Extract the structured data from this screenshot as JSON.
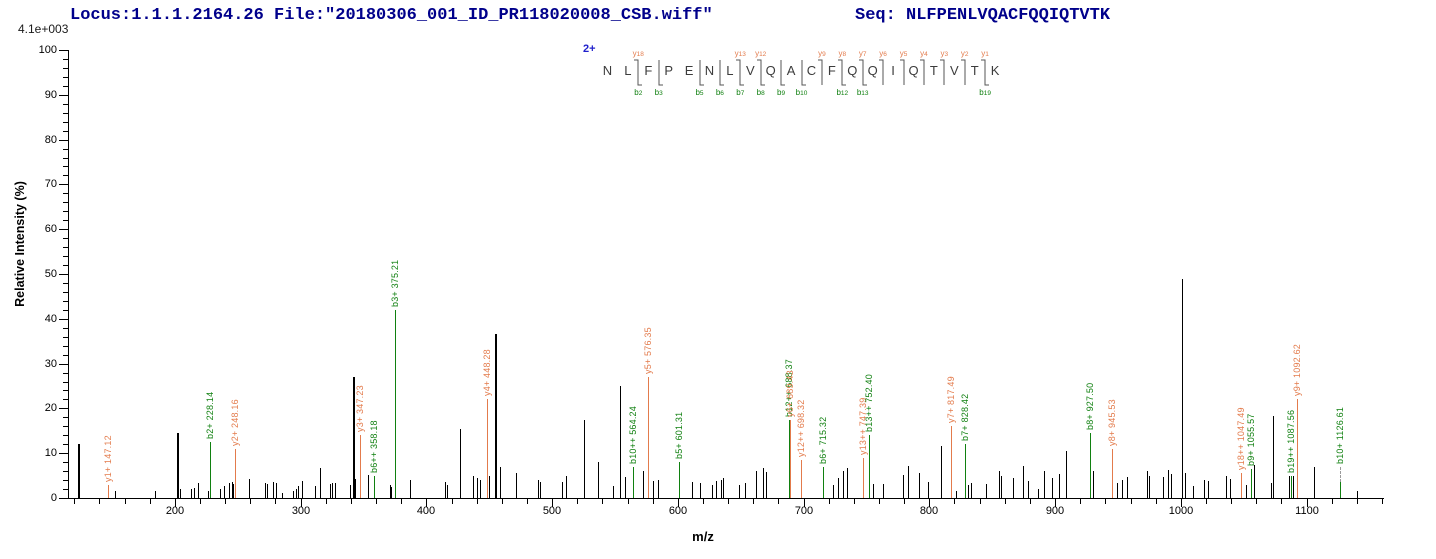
{
  "header": {
    "locus_file": "Locus:1.1.1.2164.26 File:\"20180306_001_ID_PR118020008_CSB.wiff\"",
    "seq_line": "Seq: NLFPENLVQACFQQIQTVTK",
    "max_intensity": "4.1e+003"
  },
  "precursor_charge": "2+",
  "peptide": {
    "residues": [
      "N",
      "L",
      "F",
      "P",
      "E",
      "N",
      "L",
      "V",
      "Q",
      "A",
      "C",
      "F",
      "Q",
      "Q",
      "I",
      "Q",
      "T",
      "V",
      "T",
      "K"
    ],
    "fragments": [
      {
        "after": 2,
        "y": "y18",
        "b": "b2"
      },
      {
        "after": 3,
        "b": "b3"
      },
      {
        "after": 5,
        "b": "b5"
      },
      {
        "after": 6,
        "b": "b6"
      },
      {
        "after": 7,
        "y": "y13",
        "b": "b7"
      },
      {
        "after": 8,
        "y": "y12",
        "b": "b8"
      },
      {
        "after": 9,
        "b": "b9"
      },
      {
        "after": 10,
        "b": "b10"
      },
      {
        "after": 11,
        "y": "y9"
      },
      {
        "after": 12,
        "y": "y8",
        "b": "b12"
      },
      {
        "after": 13,
        "y": "y7",
        "b": "b13"
      },
      {
        "after": 14,
        "y": "y6"
      },
      {
        "after": 15,
        "y": "y5"
      },
      {
        "after": 16,
        "y": "y4"
      },
      {
        "after": 17,
        "y": "y3"
      },
      {
        "after": 18,
        "y": "y2"
      },
      {
        "after": 19,
        "y": "y1",
        "b": "b19"
      }
    ]
  },
  "colors": {
    "y_ion": "#E37B4C",
    "b_ion": "#108010",
    "peak": "#000000",
    "header_text": "#00008B",
    "charge_label": "#2020CC"
  },
  "chart_data": {
    "type": "stick-spectrum",
    "xlabel": "m/z",
    "ylabel": "Relative  Intensity (%)",
    "xlim": [
      115,
      1160
    ],
    "ylim": [
      0,
      100
    ],
    "x_major_ticks": [
      200,
      300,
      400,
      500,
      600,
      700,
      800,
      900,
      1000,
      1100
    ],
    "x_minor_step": 20,
    "y_major_step": 10,
    "y_minor_step": 2,
    "max_intensity_label": "4.1e+003",
    "labeled_peaks": [
      {
        "label": "y1+ 147.12",
        "mz": 147.12,
        "intensity": 3,
        "series": "y"
      },
      {
        "label": "b2+ 228.14",
        "mz": 228.14,
        "intensity": 12.5,
        "series": "b"
      },
      {
        "label": "y2+ 248.16",
        "mz": 248.16,
        "intensity": 11,
        "series": "y"
      },
      {
        "label": "y3+ 347.23",
        "mz": 347.23,
        "intensity": 14,
        "series": "y"
      },
      {
        "label": "b6++ 358.18",
        "mz": 358.18,
        "intensity": 5,
        "series": "b"
      },
      {
        "label": "b3+ 375.21",
        "mz": 375.21,
        "intensity": 42,
        "series": "b"
      },
      {
        "label": "y4+ 448.28",
        "mz": 448.28,
        "intensity": 22,
        "series": "y"
      },
      {
        "label": "b10++ 564.24",
        "mz": 564.24,
        "intensity": 7,
        "series": "b"
      },
      {
        "label": "y5+ 576.35",
        "mz": 576.35,
        "intensity": 27,
        "series": "y"
      },
      {
        "label": "b5+ 601.31",
        "mz": 601.31,
        "intensity": 8,
        "series": "b"
      },
      {
        "label": "b12++ 688.37",
        "mz": 688.37,
        "intensity": 17.5,
        "series": "b"
      },
      {
        "label": "y6+ 689.43",
        "mz": 689.43,
        "intensity": 17.5,
        "series": "y"
      },
      {
        "label": "y12++ 698.32",
        "mz": 698.32,
        "intensity": 8.5,
        "series": "y"
      },
      {
        "label": "b6+ 715.32",
        "mz": 715.32,
        "intensity": 7,
        "series": "b"
      },
      {
        "label": "y13++ 747.39",
        "mz": 747.39,
        "intensity": 9,
        "series": "y"
      },
      {
        "label": "b13++ 752.40",
        "mz": 752.4,
        "intensity": 14,
        "series": "b"
      },
      {
        "label": "y7+ 817.49",
        "mz": 817.49,
        "intensity": 16,
        "series": "y"
      },
      {
        "label": "b7+ 828.42",
        "mz": 828.42,
        "intensity": 12,
        "series": "b"
      },
      {
        "label": "b8+ 927.50",
        "mz": 927.5,
        "intensity": 14.5,
        "series": "b"
      },
      {
        "label": "y8+ 945.53",
        "mz": 945.53,
        "intensity": 11,
        "series": "y"
      },
      {
        "label": "y18++ 1047.49",
        "mz": 1047.49,
        "intensity": 5.5,
        "series": "y"
      },
      {
        "label": "b9+ 1055.57",
        "mz": 1055.57,
        "intensity": 6.5,
        "series": "b"
      },
      {
        "label": "b19++ 1087.56",
        "mz": 1087.56,
        "intensity": 5,
        "series": "b"
      },
      {
        "label": "y9+ 1092.62",
        "mz": 1092.62,
        "intensity": 22,
        "series": "y"
      },
      {
        "label": "b10+ 1126.61",
        "mz": 1126.61,
        "intensity": 3.5,
        "series": "b",
        "label_intensity": 7,
        "connector": "dashed"
      }
    ],
    "unlabeled_peaks": [
      [
        123,
        12,
        2
      ],
      [
        152,
        1.5
      ],
      [
        184,
        1.5
      ],
      [
        202,
        14.5,
        2
      ],
      [
        204,
        2
      ],
      [
        213,
        2
      ],
      [
        215.3,
        2.3
      ],
      [
        218.5,
        3.3
      ],
      [
        226,
        1.5
      ],
      [
        235.8,
        2
      ],
      [
        239.2,
        2.7
      ],
      [
        243.2,
        3.4
      ],
      [
        245.1,
        3.5
      ],
      [
        246.5,
        3.2
      ],
      [
        258.8,
        4.3
      ],
      [
        271.6,
        3.4
      ],
      [
        273.4,
        3.2
      ],
      [
        278.1,
        3.6
      ],
      [
        280.1,
        3.4
      ],
      [
        285.3,
        1.2
      ],
      [
        294.1,
        1.5
      ],
      [
        296,
        1.9
      ],
      [
        298.3,
        2.7
      ],
      [
        301.2,
        3.8
      ],
      [
        311.3,
        2.7
      ],
      [
        315.8,
        6.6
      ],
      [
        323.2,
        3.2
      ],
      [
        325.1,
        3.4
      ],
      [
        327.7,
        3.4
      ],
      [
        339.1,
        3
      ],
      [
        341.3,
        27,
        2
      ],
      [
        343.6,
        4.2
      ],
      [
        353.7,
        5.2
      ],
      [
        370.9,
        3
      ],
      [
        372.2,
        2.5
      ],
      [
        386.8,
        4
      ],
      [
        414.6,
        3.5
      ],
      [
        416.5,
        3
      ],
      [
        426.6,
        15.5
      ],
      [
        437,
        5
      ],
      [
        440,
        4.5
      ],
      [
        442.4,
        4
      ],
      [
        450,
        5
      ],
      [
        454.4,
        36.5,
        2
      ],
      [
        458.3,
        7
      ],
      [
        471.3,
        5.5
      ],
      [
        488.6,
        4
      ],
      [
        490.1,
        3.5
      ],
      [
        508.2,
        3.6
      ],
      [
        511.4,
        5
      ],
      [
        525.4,
        17.5
      ],
      [
        536.5,
        8
      ],
      [
        548.4,
        2.6
      ],
      [
        553.7,
        25
      ],
      [
        557.7,
        4.7
      ],
      [
        572.3,
        6
      ],
      [
        580.2,
        3.8
      ],
      [
        584.2,
        4
      ],
      [
        611.2,
        3.6
      ],
      [
        617.3,
        3.3
      ],
      [
        627.1,
        2.9
      ],
      [
        630,
        3.7
      ],
      [
        634.6,
        4
      ],
      [
        636,
        4.5
      ],
      [
        648.6,
        2.9
      ],
      [
        653.7,
        3.3
      ],
      [
        662.4,
        6
      ],
      [
        667.7,
        6.7
      ],
      [
        670.4,
        5.7
      ],
      [
        723.3,
        3
      ],
      [
        727.3,
        4.5
      ],
      [
        731.2,
        6.1
      ],
      [
        734.7,
        6.7
      ],
      [
        755.1,
        3.1
      ],
      [
        763.1,
        3.1
      ],
      [
        779,
        5.2
      ],
      [
        783,
        7.1
      ],
      [
        791.7,
        5.6
      ],
      [
        798.9,
        3.6
      ],
      [
        809.5,
        11.6
      ],
      [
        821,
        1.5
      ],
      [
        830.6,
        2.8
      ],
      [
        833.3,
        3.4
      ],
      [
        845.2,
        3.1
      ],
      [
        855.8,
        6
      ],
      [
        857.2,
        5
      ],
      [
        866.4,
        4.5
      ],
      [
        874.3,
        7.1
      ],
      [
        878.3,
        3.9
      ],
      [
        886.3,
        1.9
      ],
      [
        890.8,
        6
      ],
      [
        897.7,
        4.5
      ],
      [
        903.5,
        5.4
      ],
      [
        908.3,
        10.6
      ],
      [
        929.8,
        6
      ],
      [
        949.1,
        3.4
      ],
      [
        953.1,
        4.1
      ],
      [
        957,
        4.6
      ],
      [
        972.9,
        6
      ],
      [
        974.5,
        5
      ],
      [
        985.7,
        4.6
      ],
      [
        989.6,
        6.3
      ],
      [
        992.3,
        5.4
      ],
      [
        1000.7,
        48.8
      ],
      [
        1003.4,
        5.6
      ],
      [
        1009.5,
        2.6
      ],
      [
        1018.8,
        4.1
      ],
      [
        1022,
        3.7
      ],
      [
        1036,
        4.8
      ],
      [
        1039.2,
        4.3
      ],
      [
        1052,
        3
      ],
      [
        1058.5,
        7.3
      ],
      [
        1071.8,
        3.4
      ],
      [
        1073.1,
        18.3
      ],
      [
        1085.8,
        4.8
      ],
      [
        1089,
        4.8
      ],
      [
        1106.2,
        6.9
      ],
      [
        1140,
        1.5
      ]
    ]
  }
}
